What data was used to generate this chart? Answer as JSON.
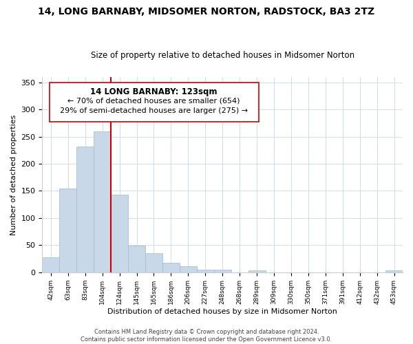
{
  "title": "14, LONG BARNABY, MIDSOMER NORTON, RADSTOCK, BA3 2TZ",
  "subtitle": "Size of property relative to detached houses in Midsomer Norton",
  "xlabel": "Distribution of detached houses by size in Midsomer Norton",
  "ylabel": "Number of detached properties",
  "bin_labels": [
    "42sqm",
    "63sqm",
    "83sqm",
    "104sqm",
    "124sqm",
    "145sqm",
    "165sqm",
    "186sqm",
    "206sqm",
    "227sqm",
    "248sqm",
    "268sqm",
    "289sqm",
    "309sqm",
    "330sqm",
    "350sqm",
    "371sqm",
    "391sqm",
    "412sqm",
    "432sqm",
    "453sqm"
  ],
  "bar_heights": [
    28,
    155,
    232,
    260,
    143,
    49,
    35,
    18,
    11,
    5,
    5,
    0,
    4,
    0,
    0,
    0,
    0,
    0,
    0,
    0,
    3
  ],
  "bar_color": "#c8d8e8",
  "bar_edge_color": "#a0b8cc",
  "vline_x": 4,
  "vline_color": "#cc0000",
  "ylim": [
    0,
    360
  ],
  "yticks": [
    0,
    50,
    100,
    150,
    200,
    250,
    300,
    350
  ],
  "annotation_title": "14 LONG BARNABY: 123sqm",
  "annotation_line1": "← 70% of detached houses are smaller (654)",
  "annotation_line2": "29% of semi-detached houses are larger (275) →",
  "annotation_box_color": "#ffffff",
  "annotation_border_color": "#cc0000",
  "footer_line1": "Contains HM Land Registry data © Crown copyright and database right 2024.",
  "footer_line2": "Contains public sector information licensed under the Open Government Licence v3.0."
}
